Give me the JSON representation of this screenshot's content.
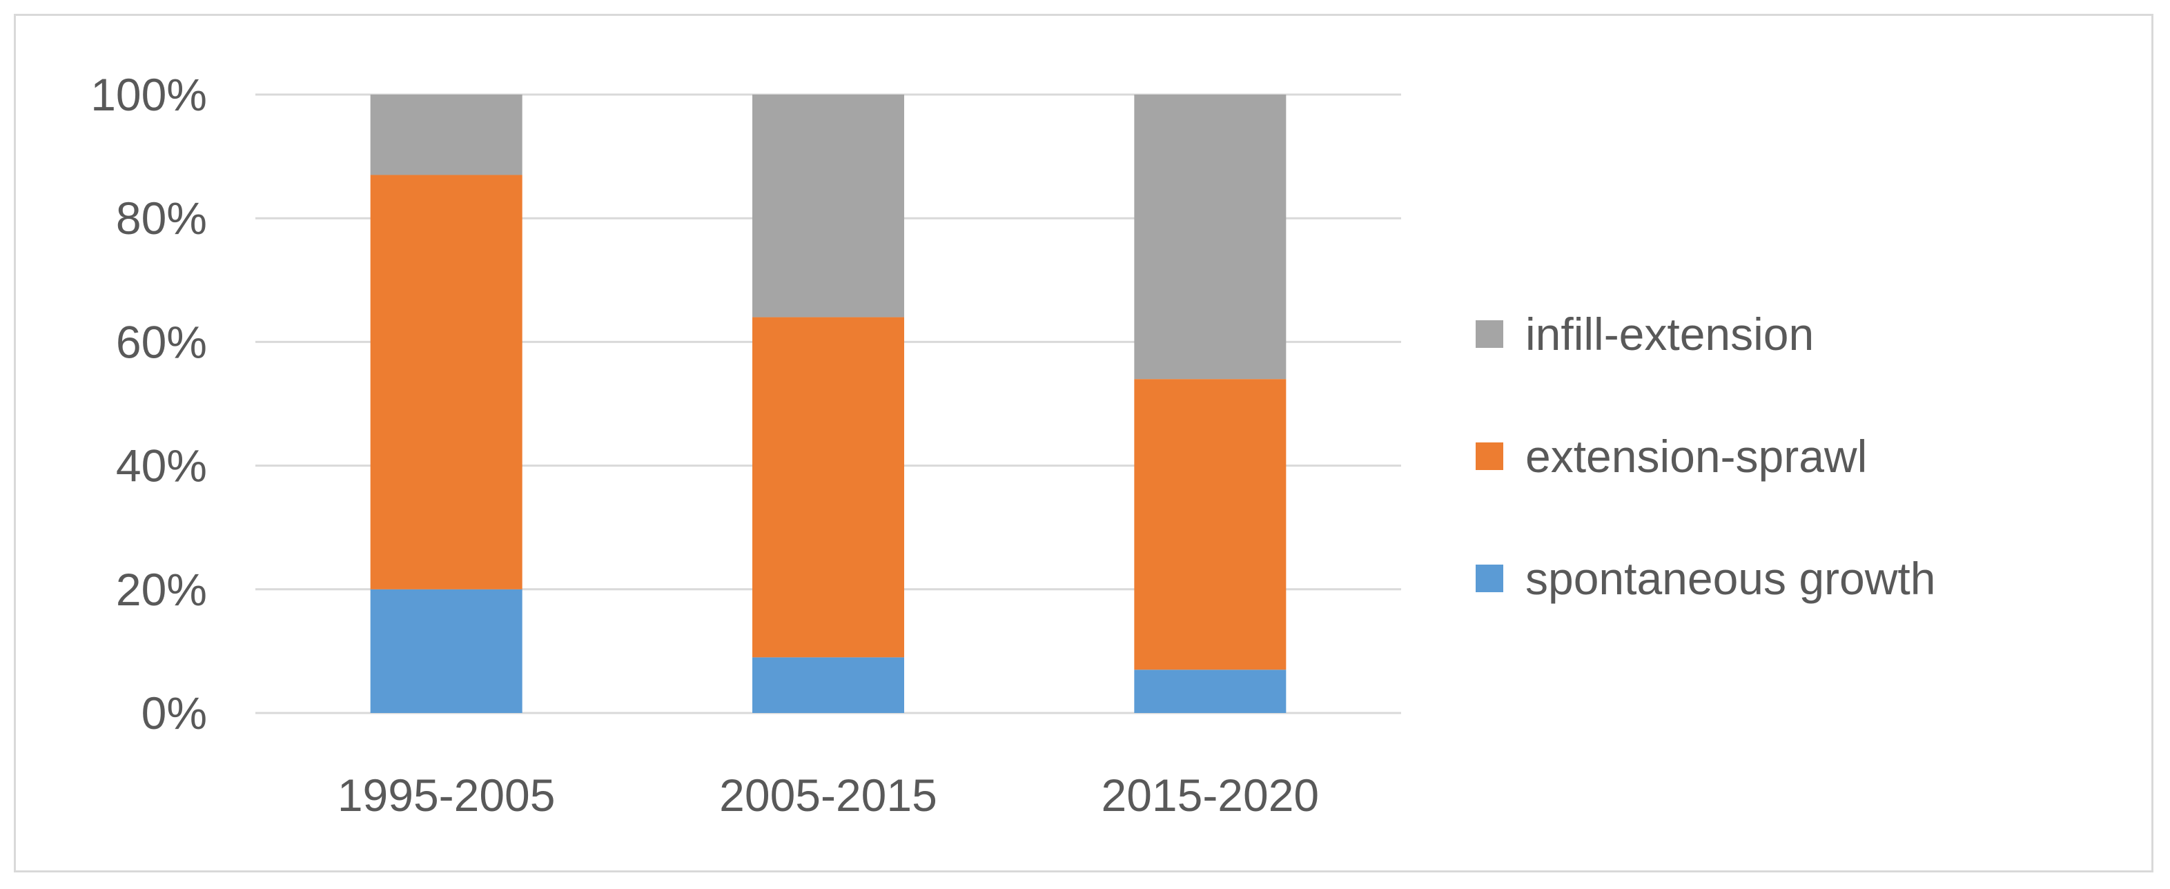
{
  "chart_data": {
    "type": "bar",
    "stacked": true,
    "percent": true,
    "title": "",
    "xlabel": "",
    "ylabel": "",
    "categories": [
      "1995-2005",
      "2005-2015",
      "2015-2020"
    ],
    "series": [
      {
        "name": "spontaneous growth",
        "values": [
          20,
          9,
          7
        ],
        "color": "#5b9bd5"
      },
      {
        "name": "extension-sprawl",
        "values": [
          67,
          55,
          47
        ],
        "color": "#ed7d31"
      },
      {
        "name": "infill-extension",
        "values": [
          13,
          36,
          46
        ],
        "color": "#a5a5a5"
      }
    ],
    "ylim": [
      0,
      100
    ],
    "yticks": [
      "0%",
      "20%",
      "40%",
      "60%",
      "80%",
      "100%"
    ],
    "ytick_values": [
      0,
      20,
      40,
      60,
      80,
      100
    ],
    "grid": true,
    "gridline_color": "#d9d9d9",
    "legend_position": "right"
  }
}
